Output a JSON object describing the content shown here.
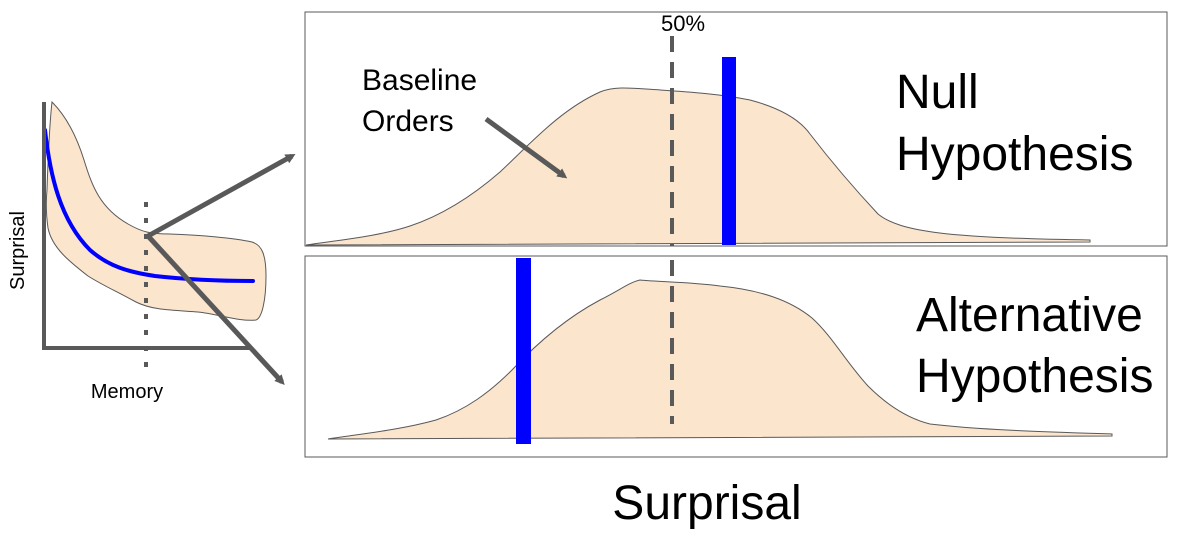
{
  "small_plot": {
    "y_axis_label": "Surprisal",
    "x_axis_label": "Memory"
  },
  "top_panel": {
    "percentile_label": "50%",
    "annotation": {
      "line1": "Baseline",
      "line2": "Orders"
    },
    "title": {
      "line1": "Null",
      "line2": "Hypothesis"
    }
  },
  "bottom_panel": {
    "title": {
      "line1": "Alternative",
      "line2": "Hypothesis"
    }
  },
  "x_axis_label": "Surprisal",
  "colors": {
    "density_fill": "#fbe5cd",
    "density_stroke": "#595959",
    "highlight": "#0000ff",
    "arrow": "#595959",
    "dashed_line": "#595959",
    "axis": "#595959",
    "panel_border": "#595959"
  }
}
